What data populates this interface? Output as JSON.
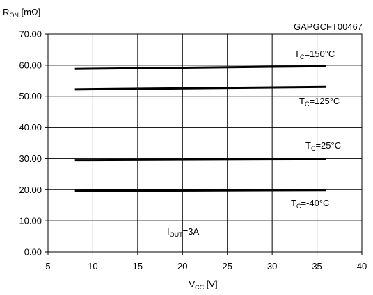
{
  "chart_data": {
    "type": "line",
    "figure_code": "GAPGCFT00467",
    "ylabel": {
      "main": "R",
      "sub": "ON",
      "unit": " [mΩ]"
    },
    "xlabel": {
      "main": "V",
      "sub": "CC",
      "unit": " [V]"
    },
    "xlim": [
      5,
      40
    ],
    "ylim": [
      0,
      70
    ],
    "x_ticks": [
      "5",
      "10",
      "15",
      "20",
      "25",
      "30",
      "35",
      "40"
    ],
    "y_ticks": [
      "0.00",
      "10.00",
      "20.00",
      "30.00",
      "40.00",
      "50.00",
      "60.00",
      "70.00"
    ],
    "grid": true,
    "condition": {
      "main": "I",
      "sub": "OUT",
      "rest": "=3A"
    },
    "series": [
      {
        "name": "T_C=150°C",
        "label": {
          "main": "T",
          "sub": "C",
          "rest": "=150°C"
        },
        "x": [
          8,
          36
        ],
        "y": [
          58.8,
          59.7
        ]
      },
      {
        "name": "T_C=125°C",
        "label": {
          "main": "T",
          "sub": "C",
          "rest": "=125°C"
        },
        "x": [
          8,
          36
        ],
        "y": [
          52.2,
          53.0
        ]
      },
      {
        "name": "T_C=25°C",
        "label": {
          "main": "T",
          "sub": "C",
          "rest": "=25°C"
        },
        "x": [
          8,
          36
        ],
        "y": [
          29.5,
          29.8
        ]
      },
      {
        "name": "T_C=-40°C",
        "label": {
          "main": "T",
          "sub": "C",
          "rest": "=-40°C"
        },
        "x": [
          8,
          36
        ],
        "y": [
          19.6,
          19.9
        ]
      }
    ]
  }
}
